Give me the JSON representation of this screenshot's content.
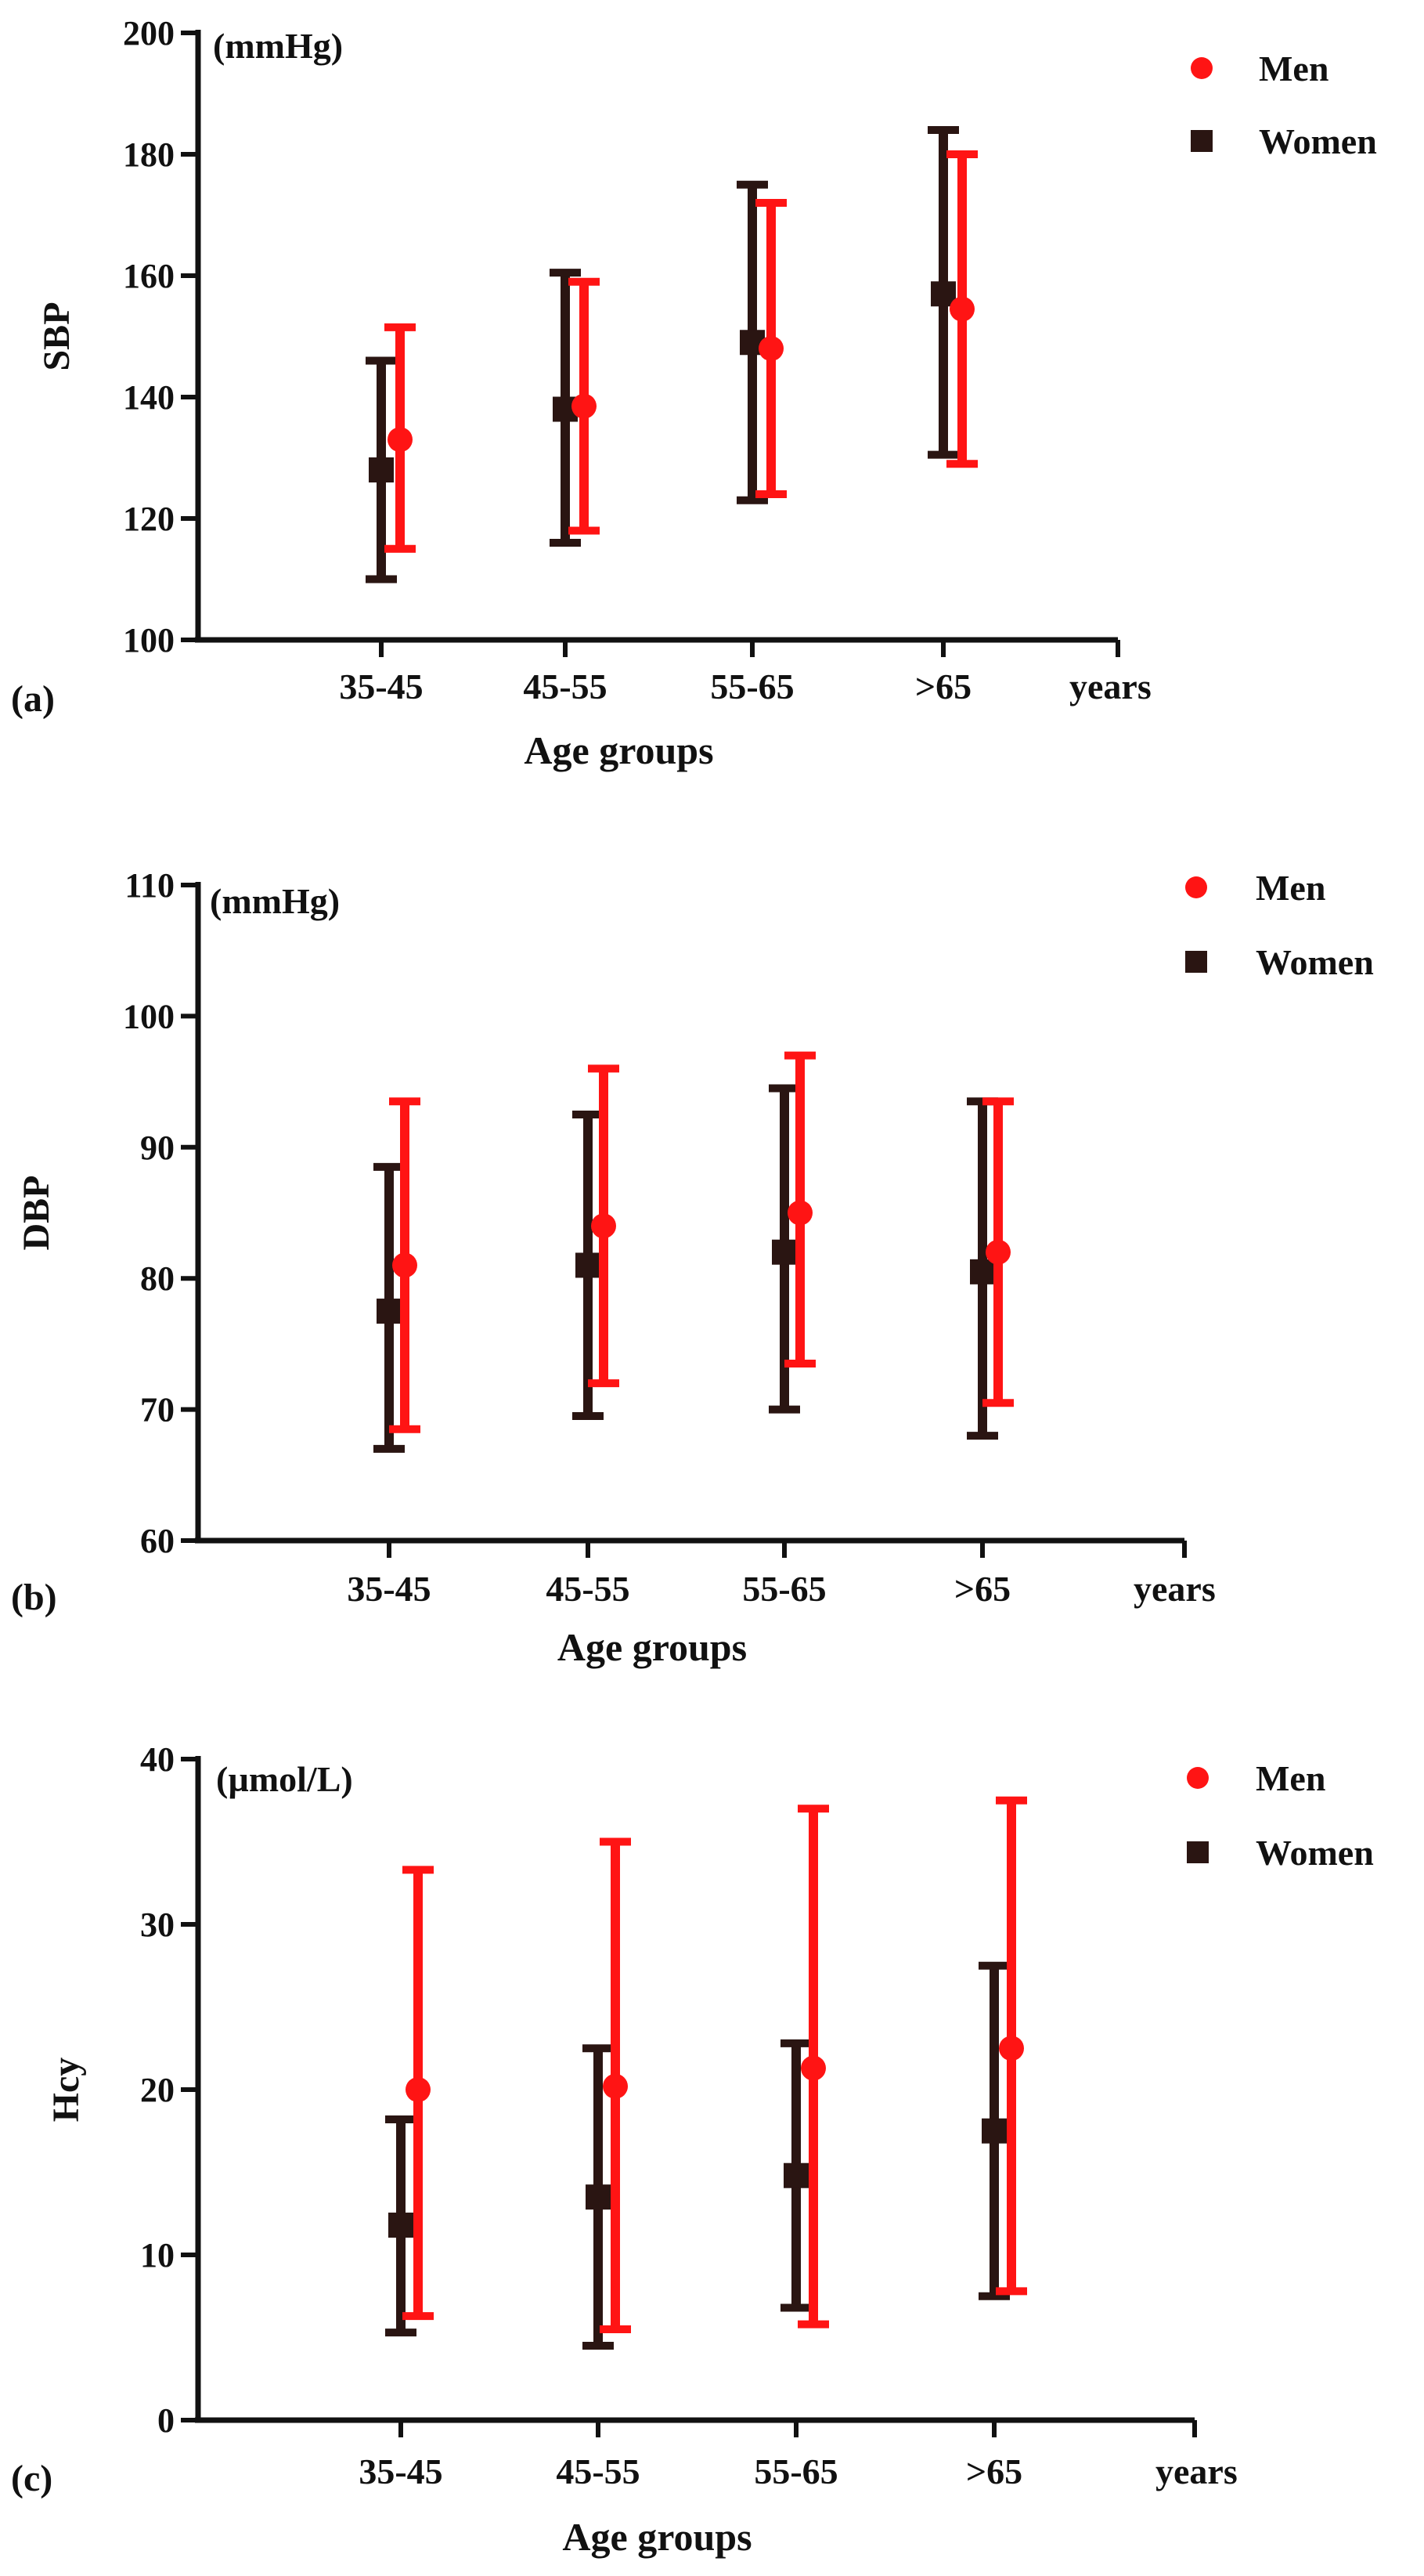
{
  "figure": {
    "colors": {
      "men": "#ff1414",
      "women": "#2a1512",
      "axis": "#111111"
    },
    "legend_men": "Men",
    "legend_women": "Women"
  },
  "chart_data": [
    {
      "panel_label": "(a)",
      "type": "errorbar",
      "title": "",
      "ylabel": "SBP",
      "unit": "(mmHg)",
      "xlabel": "Age groups",
      "x_unit": "years",
      "categories": [
        "35-45",
        "45-55",
        "55-65",
        ">65"
      ],
      "ylim": [
        100,
        200
      ],
      "yticks": [
        100,
        120,
        140,
        160,
        180,
        200
      ],
      "legend_position": "top-right",
      "series": [
        {
          "name": "Men",
          "marker": "circle",
          "color": "#ff1414",
          "values": [
            133,
            138.5,
            148,
            154.5
          ],
          "lower": [
            115,
            118,
            124,
            129
          ],
          "upper": [
            151.5,
            159,
            172,
            180
          ]
        },
        {
          "name": "Women",
          "marker": "square",
          "color": "#2a1512",
          "values": [
            128,
            138,
            149,
            157
          ],
          "lower": [
            110,
            116,
            123,
            130.5
          ],
          "upper": [
            146,
            160.5,
            175,
            184
          ]
        }
      ]
    },
    {
      "panel_label": "(b)",
      "type": "errorbar",
      "title": "",
      "ylabel": "DBP",
      "unit": "(mmHg)",
      "xlabel": "Age groups",
      "x_unit": "years",
      "categories": [
        "35-45",
        "45-55",
        "55-65",
        ">65"
      ],
      "ylim": [
        60,
        110
      ],
      "yticks": [
        60,
        70,
        80,
        90,
        100,
        110
      ],
      "legend_position": "top-right",
      "series": [
        {
          "name": "Men",
          "marker": "circle",
          "color": "#ff1414",
          "values": [
            81,
            84,
            85,
            82
          ],
          "lower": [
            68.5,
            72,
            73.5,
            70.5
          ],
          "upper": [
            93.5,
            96,
            97,
            93.5
          ]
        },
        {
          "name": "Women",
          "marker": "square",
          "color": "#2a1512",
          "values": [
            77.5,
            81,
            82,
            80.5
          ],
          "lower": [
            67,
            69.5,
            70,
            68
          ],
          "upper": [
            88.5,
            92.5,
            94.5,
            93.5
          ]
        }
      ]
    },
    {
      "panel_label": "(c)",
      "type": "errorbar",
      "title": "",
      "ylabel": "Hcy",
      "unit": "(µmol/L)",
      "xlabel": "Age groups",
      "x_unit": "years",
      "categories": [
        "35-45",
        "45-55",
        "55-65",
        ">65"
      ],
      "ylim": [
        0,
        40
      ],
      "yticks": [
        0,
        10,
        20,
        30,
        40
      ],
      "legend_position": "top-right",
      "series": [
        {
          "name": "Men",
          "marker": "circle",
          "color": "#ff1414",
          "values": [
            20,
            20.2,
            21.3,
            22.5
          ],
          "lower": [
            6.3,
            5.5,
            5.8,
            7.8
          ],
          "upper": [
            33.3,
            35,
            37,
            37.5
          ]
        },
        {
          "name": "Women",
          "marker": "square",
          "color": "#2a1512",
          "values": [
            11.8,
            13.5,
            14.8,
            17.5
          ],
          "lower": [
            5.3,
            4.5,
            6.8,
            7.5
          ],
          "upper": [
            18.2,
            22.5,
            22.8,
            27.5
          ]
        }
      ]
    }
  ]
}
